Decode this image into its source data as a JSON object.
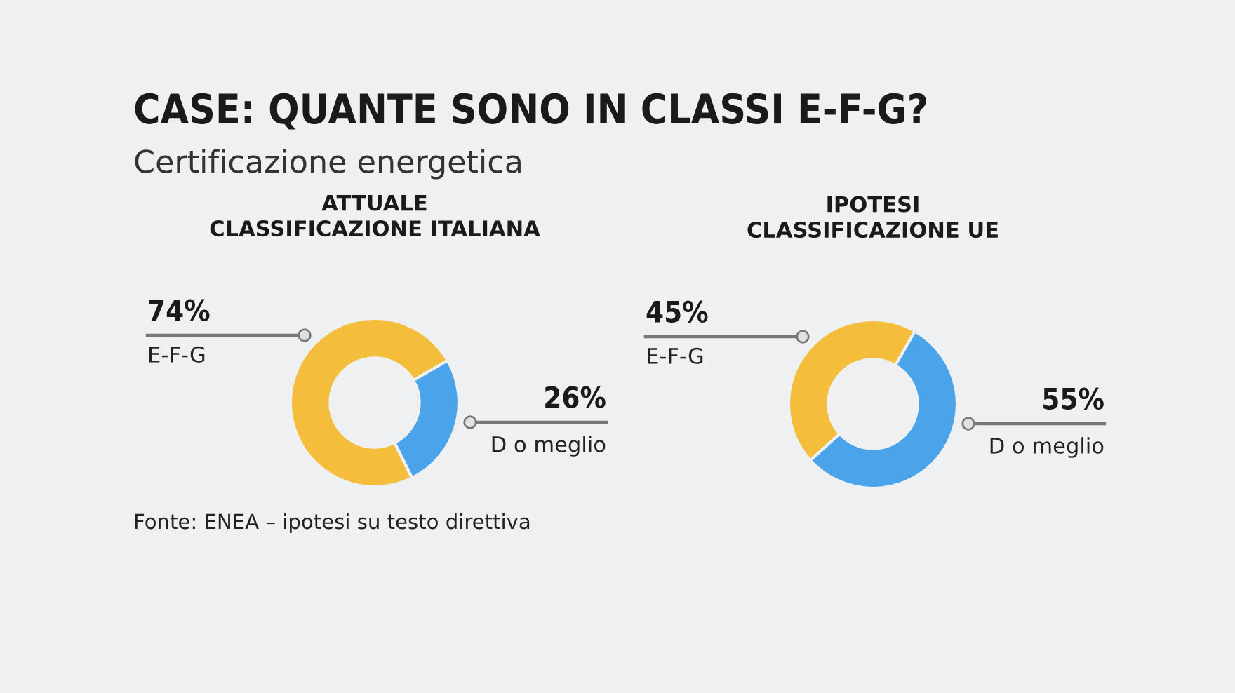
{
  "chart_data": [
    {
      "type": "other",
      "title": "CASE: QUANTE SONO IN CLASSI E-F-G?",
      "subtitle": "Certificazione energetica",
      "annotations": [
        "Fonte: ENEA – ipotesi su testo direttiva"
      ]
    },
    {
      "type": "donut",
      "title": "ATTUALE\nCLASSIFICAZIONE ITALIANA",
      "categories": [
        "E-F-G",
        "D o meglio"
      ],
      "values": [
        74,
        26
      ],
      "colors": [
        "#f5bd3c",
        "#4ba3ea"
      ],
      "value_labels": [
        "74%",
        "26%"
      ]
    },
    {
      "type": "donut",
      "title": "IPOTESI\nCLASSIFICAZIONE UE",
      "categories": [
        "E-F-G",
        "D o meglio"
      ],
      "values": [
        45,
        55
      ],
      "colors": [
        "#f5bd3c",
        "#4ba3ea"
      ],
      "value_labels": [
        "45%",
        "55%"
      ]
    }
  ]
}
